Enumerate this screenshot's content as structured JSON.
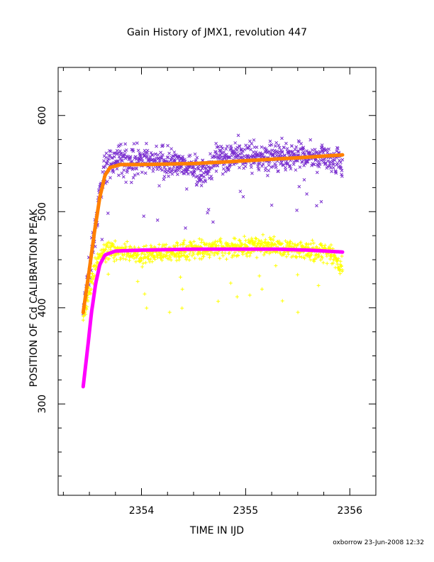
{
  "chart_data": {
    "type": "scatter",
    "title": "Gain History of JMX1, revolution 447",
    "xlabel": "TIME IN IJD",
    "ylabel": "POSITION OF Cd CALIBRATION PEAK",
    "xlim": [
      2353.2,
      2356.25
    ],
    "ylim": [
      205,
      650
    ],
    "x_ticks": [
      2354,
      2355,
      2356
    ],
    "y_ticks": [
      300,
      400,
      500,
      600
    ],
    "grid": false,
    "x_range_data": [
      2353.44,
      2355.93
    ],
    "series": [
      {
        "marker": "x",
        "color": "#7a2fcf",
        "description_points": [
          [
            2353.44,
            395
          ],
          [
            2353.5,
            440
          ],
          [
            2353.55,
            475
          ],
          [
            2353.6,
            520
          ],
          [
            2353.65,
            548
          ],
          [
            2353.8,
            555
          ],
          [
            2354.0,
            553
          ],
          [
            2354.3,
            550
          ],
          [
            2354.5,
            545
          ],
          [
            2354.6,
            540
          ],
          [
            2354.7,
            552
          ],
          [
            2354.9,
            560
          ],
          [
            2355.2,
            556
          ],
          [
            2355.5,
            558
          ],
          [
            2355.8,
            555
          ],
          [
            2355.9,
            552
          ]
        ]
      },
      {
        "marker": "+",
        "color": "#ffff00",
        "description_points": [
          [
            2353.44,
            390
          ],
          [
            2353.5,
            420
          ],
          [
            2353.55,
            440
          ],
          [
            2353.6,
            455
          ],
          [
            2353.7,
            460
          ],
          [
            2354.0,
            455
          ],
          [
            2354.3,
            458
          ],
          [
            2354.6,
            462
          ],
          [
            2354.9,
            462
          ],
          [
            2355.2,
            465
          ],
          [
            2355.5,
            460
          ],
          [
            2355.8,
            458
          ],
          [
            2355.9,
            445
          ]
        ]
      },
      {
        "marker": "line",
        "color": "#ff8000",
        "fit_points": [
          [
            2353.44,
            395
          ],
          [
            2353.5,
            440
          ],
          [
            2353.55,
            480
          ],
          [
            2353.6,
            515
          ],
          [
            2353.65,
            538
          ],
          [
            2353.7,
            546
          ],
          [
            2353.8,
            549
          ],
          [
            2354.0,
            549
          ],
          [
            2354.5,
            550
          ],
          [
            2354.85,
            552
          ],
          [
            2355.0,
            553
          ],
          [
            2355.5,
            556
          ],
          [
            2355.93,
            559
          ]
        ]
      },
      {
        "marker": "line",
        "color": "#ff00ff",
        "fit_points": [
          [
            2353.44,
            318
          ],
          [
            2353.48,
            355
          ],
          [
            2353.52,
            395
          ],
          [
            2353.56,
            425
          ],
          [
            2353.6,
            445
          ],
          [
            2353.65,
            455
          ],
          [
            2353.75,
            459
          ],
          [
            2354.0,
            460
          ],
          [
            2354.5,
            461
          ],
          [
            2355.0,
            461
          ],
          [
            2355.3,
            461
          ],
          [
            2355.6,
            460
          ],
          [
            2355.93,
            458
          ]
        ]
      }
    ]
  },
  "footer": "oxborrow 23-Jun-2008 12:32"
}
